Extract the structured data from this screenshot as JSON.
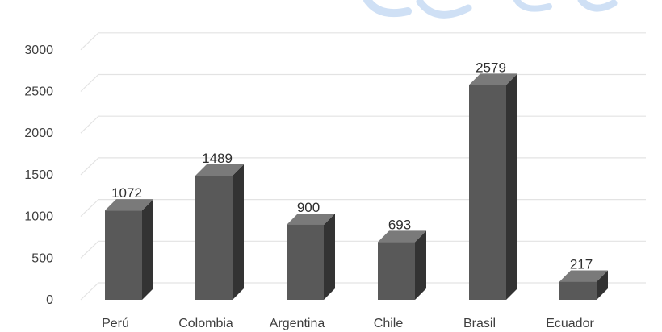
{
  "chart_data": {
    "type": "bar",
    "style": "3d-column",
    "categories": [
      "Perú",
      "Colombia",
      "Argentina",
      "Chile",
      "Brasil",
      "Ecuador"
    ],
    "values": [
      1072,
      1489,
      900,
      693,
      2579,
      217
    ],
    "data_labels": [
      "1072",
      "1489",
      "900",
      "693",
      "2579",
      "217"
    ],
    "yticks": [
      0,
      500,
      1000,
      1500,
      2000,
      2500,
      3000
    ],
    "ytick_labels": [
      "0",
      "500",
      "1000",
      "1500",
      "2000",
      "2500",
      "3000"
    ],
    "ylim": [
      0,
      3000
    ],
    "grid": true,
    "legend": false,
    "colors": {
      "bar_front": "#595959",
      "bar_side": "#333333",
      "bar_top": "#7a7a7a",
      "grid": "#e3e3e3",
      "watermark": "#cfe0f5"
    }
  }
}
